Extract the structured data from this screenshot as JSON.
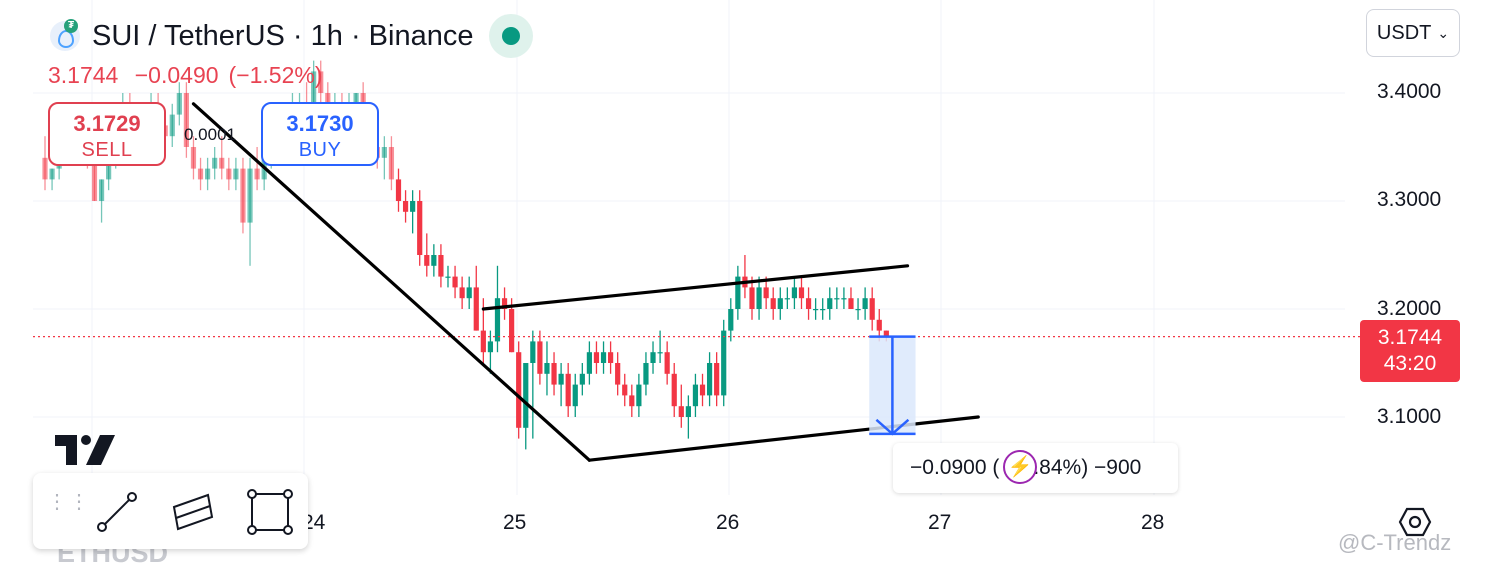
{
  "header": {
    "title": "SUI / TetherUS · 1h · Binance",
    "last_price": "3.1744",
    "change": "−0.0490",
    "change_pct": "(−1.52%)"
  },
  "trade": {
    "sell_price": "3.1729",
    "sell_label": "SELL",
    "spread": "0.0001",
    "buy_price": "3.1730",
    "buy_label": "BUY"
  },
  "currency_selector": {
    "label": "USDT"
  },
  "last_badge": {
    "price": "3.1744",
    "countdown": "43:20"
  },
  "measure": {
    "text_before": "−0.0900 (",
    "text_after": ".84%) −900"
  },
  "toolbar": {
    "bg_label": "ETHUSD"
  },
  "watermark": "@C-Trendz",
  "colors": {
    "up": "#089981",
    "down": "#f23645",
    "accent": "#2962ff",
    "measure_fill": "#dbe7fb"
  },
  "chart_data": {
    "type": "candlestick",
    "timeframe": "1h",
    "y_ticks": [
      "3.4000",
      "3.3000",
      "3.2000",
      "3.1000"
    ],
    "x_ticks": [
      "24",
      "25",
      "26",
      "27",
      "28"
    ],
    "ylim": [
      3.05,
      3.44
    ],
    "grid": true,
    "last_price": 3.1744,
    "candles": [
      [
        3.34,
        3.36,
        3.31,
        3.32
      ],
      [
        3.32,
        3.33,
        3.31,
        3.33
      ],
      [
        3.33,
        3.36,
        3.32,
        3.35
      ],
      [
        3.35,
        3.38,
        3.34,
        3.37
      ],
      [
        3.37,
        3.39,
        3.35,
        3.36
      ],
      [
        3.36,
        3.37,
        3.34,
        3.35
      ],
      [
        3.35,
        3.36,
        3.33,
        3.34
      ],
      [
        3.34,
        3.35,
        3.3,
        3.3
      ],
      [
        3.3,
        3.32,
        3.28,
        3.32
      ],
      [
        3.32,
        3.35,
        3.31,
        3.34
      ],
      [
        3.34,
        3.37,
        3.33,
        3.36
      ],
      [
        3.36,
        3.4,
        3.35,
        3.39
      ],
      [
        3.39,
        3.4,
        3.37,
        3.38
      ],
      [
        3.38,
        3.39,
        3.36,
        3.37
      ],
      [
        3.37,
        3.39,
        3.36,
        3.38
      ],
      [
        3.38,
        3.4,
        3.37,
        3.39
      ],
      [
        3.39,
        3.4,
        3.36,
        3.37
      ],
      [
        3.37,
        3.38,
        3.35,
        3.36
      ],
      [
        3.36,
        3.39,
        3.35,
        3.38
      ],
      [
        3.38,
        3.41,
        3.37,
        3.4
      ],
      [
        3.4,
        3.41,
        3.34,
        3.35
      ],
      [
        3.35,
        3.36,
        3.32,
        3.33
      ],
      [
        3.33,
        3.34,
        3.31,
        3.32
      ],
      [
        3.32,
        3.34,
        3.31,
        3.33
      ],
      [
        3.33,
        3.35,
        3.32,
        3.34
      ],
      [
        3.34,
        3.36,
        3.32,
        3.33
      ],
      [
        3.33,
        3.34,
        3.31,
        3.32
      ],
      [
        3.32,
        3.34,
        3.31,
        3.33
      ],
      [
        3.33,
        3.34,
        3.27,
        3.28
      ],
      [
        3.28,
        3.34,
        3.24,
        3.33
      ],
      [
        3.33,
        3.35,
        3.31,
        3.32
      ],
      [
        3.32,
        3.35,
        3.31,
        3.34
      ],
      [
        3.34,
        3.37,
        3.33,
        3.36
      ],
      [
        3.36,
        3.38,
        3.35,
        3.37
      ],
      [
        3.37,
        3.39,
        3.36,
        3.38
      ],
      [
        3.38,
        3.4,
        3.37,
        3.39
      ],
      [
        3.39,
        3.4,
        3.38,
        3.39
      ],
      [
        3.39,
        3.41,
        3.37,
        3.38
      ],
      [
        3.38,
        3.43,
        3.37,
        3.42
      ],
      [
        3.42,
        3.43,
        3.39,
        3.4
      ],
      [
        3.4,
        3.41,
        3.38,
        3.39
      ],
      [
        3.39,
        3.4,
        3.38,
        3.39
      ],
      [
        3.39,
        3.4,
        3.38,
        3.38
      ],
      [
        3.38,
        3.4,
        3.37,
        3.39
      ],
      [
        3.39,
        3.4,
        3.37,
        3.4
      ],
      [
        3.4,
        3.41,
        3.36,
        3.37
      ],
      [
        3.37,
        3.38,
        3.35,
        3.35
      ],
      [
        3.35,
        3.36,
        3.33,
        3.34
      ],
      [
        3.34,
        3.36,
        3.32,
        3.35
      ],
      [
        3.35,
        3.36,
        3.31,
        3.32
      ],
      [
        3.32,
        3.33,
        3.29,
        3.3
      ],
      [
        3.3,
        3.31,
        3.28,
        3.29
      ],
      [
        3.29,
        3.31,
        3.27,
        3.3
      ],
      [
        3.3,
        3.31,
        3.24,
        3.25
      ],
      [
        3.25,
        3.27,
        3.23,
        3.24
      ],
      [
        3.24,
        3.26,
        3.23,
        3.25
      ],
      [
        3.25,
        3.26,
        3.22,
        3.23
      ],
      [
        3.23,
        3.24,
        3.22,
        3.23
      ],
      [
        3.23,
        3.24,
        3.21,
        3.22
      ],
      [
        3.22,
        3.23,
        3.2,
        3.21
      ],
      [
        3.21,
        3.23,
        3.2,
        3.22
      ],
      [
        3.22,
        3.24,
        3.18,
        3.18
      ],
      [
        3.18,
        3.21,
        3.15,
        3.16
      ],
      [
        3.16,
        3.18,
        3.14,
        3.17
      ],
      [
        3.17,
        3.24,
        3.16,
        3.21
      ],
      [
        3.21,
        3.22,
        3.19,
        3.2
      ],
      [
        3.2,
        3.21,
        3.16,
        3.16
      ],
      [
        3.16,
        3.17,
        3.08,
        3.09
      ],
      [
        3.09,
        3.15,
        3.07,
        3.15
      ],
      [
        3.15,
        3.18,
        3.08,
        3.17
      ],
      [
        3.17,
        3.18,
        3.13,
        3.14
      ],
      [
        3.14,
        3.17,
        3.12,
        3.15
      ],
      [
        3.15,
        3.16,
        3.12,
        3.13
      ],
      [
        3.13,
        3.15,
        3.11,
        3.14
      ],
      [
        3.14,
        3.15,
        3.1,
        3.11
      ],
      [
        3.11,
        3.14,
        3.1,
        3.13
      ],
      [
        3.13,
        3.15,
        3.12,
        3.14
      ],
      [
        3.14,
        3.17,
        3.13,
        3.16
      ],
      [
        3.16,
        3.17,
        3.14,
        3.15
      ],
      [
        3.15,
        3.17,
        3.14,
        3.16
      ],
      [
        3.16,
        3.17,
        3.14,
        3.15
      ],
      [
        3.15,
        3.16,
        3.12,
        3.13
      ],
      [
        3.13,
        3.14,
        3.11,
        3.12
      ],
      [
        3.12,
        3.13,
        3.1,
        3.11
      ],
      [
        3.11,
        3.14,
        3.1,
        3.13
      ],
      [
        3.13,
        3.16,
        3.12,
        3.15
      ],
      [
        3.15,
        3.17,
        3.14,
        3.16
      ],
      [
        3.16,
        3.18,
        3.15,
        3.16
      ],
      [
        3.16,
        3.17,
        3.13,
        3.14
      ],
      [
        3.14,
        3.15,
        3.1,
        3.11
      ],
      [
        3.11,
        3.13,
        3.09,
        3.1
      ],
      [
        3.1,
        3.12,
        3.08,
        3.11
      ],
      [
        3.11,
        3.14,
        3.1,
        3.13
      ],
      [
        3.13,
        3.14,
        3.11,
        3.12
      ],
      [
        3.12,
        3.16,
        3.11,
        3.15
      ],
      [
        3.15,
        3.16,
        3.11,
        3.12
      ],
      [
        3.12,
        3.19,
        3.11,
        3.18
      ],
      [
        3.18,
        3.21,
        3.17,
        3.2
      ],
      [
        3.2,
        3.24,
        3.19,
        3.23
      ],
      [
        3.23,
        3.25,
        3.21,
        3.22
      ],
      [
        3.22,
        3.23,
        3.19,
        3.2
      ],
      [
        3.2,
        3.23,
        3.19,
        3.22
      ],
      [
        3.22,
        3.23,
        3.2,
        3.21
      ],
      [
        3.21,
        3.22,
        3.19,
        3.2
      ],
      [
        3.2,
        3.22,
        3.19,
        3.21
      ],
      [
        3.21,
        3.22,
        3.2,
        3.21
      ],
      [
        3.21,
        3.23,
        3.2,
        3.22
      ],
      [
        3.22,
        3.23,
        3.2,
        3.21
      ],
      [
        3.21,
        3.22,
        3.19,
        3.2
      ],
      [
        3.2,
        3.21,
        3.19,
        3.2
      ],
      [
        3.2,
        3.21,
        3.19,
        3.2
      ],
      [
        3.2,
        3.22,
        3.19,
        3.21
      ],
      [
        3.21,
        3.22,
        3.2,
        3.21
      ],
      [
        3.21,
        3.22,
        3.2,
        3.21
      ],
      [
        3.21,
        3.22,
        3.2,
        3.2
      ],
      [
        3.2,
        3.21,
        3.19,
        3.2
      ],
      [
        3.2,
        3.22,
        3.19,
        3.21
      ],
      [
        3.21,
        3.22,
        3.18,
        3.19
      ],
      [
        3.19,
        3.2,
        3.17,
        3.18
      ],
      [
        3.18,
        3.18,
        3.17,
        3.1744
      ]
    ],
    "trendlines": [
      {
        "from": [
          21,
          3.39
        ],
        "to": [
          77,
          3.06
        ]
      },
      {
        "from": [
          62,
          3.2
        ],
        "to": [
          122,
          3.24
        ]
      },
      {
        "from": [
          77,
          3.06
        ],
        "to": [
          132,
          3.1
        ]
      }
    ],
    "measure_projection": {
      "from_index": 118,
      "to_index": 122,
      "from_price": 3.1744,
      "to_price": 3.0844
    }
  }
}
